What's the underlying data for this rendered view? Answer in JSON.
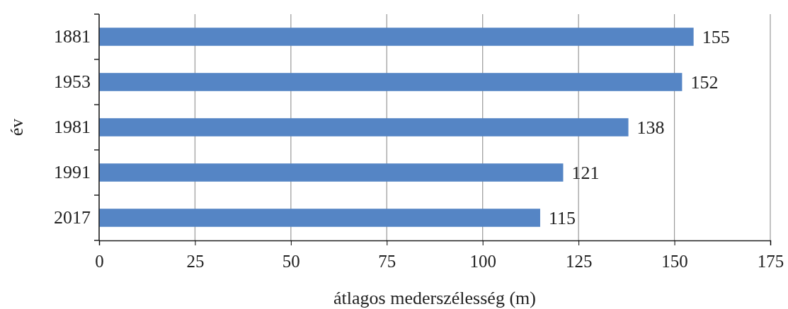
{
  "chart_data": {
    "type": "bar",
    "orientation": "horizontal",
    "categories": [
      "1881",
      "1953",
      "1981",
      "1991",
      "2017"
    ],
    "values": [
      155,
      152,
      138,
      121,
      115
    ],
    "color": "#5585c5",
    "data_labels": true,
    "xlim": [
      0,
      175
    ],
    "xticks": [
      0,
      25,
      50,
      75,
      100,
      125,
      150,
      175
    ],
    "grid": "x",
    "xlabel": "átlagos mederszélesség (m)",
    "ylabel": "év"
  }
}
